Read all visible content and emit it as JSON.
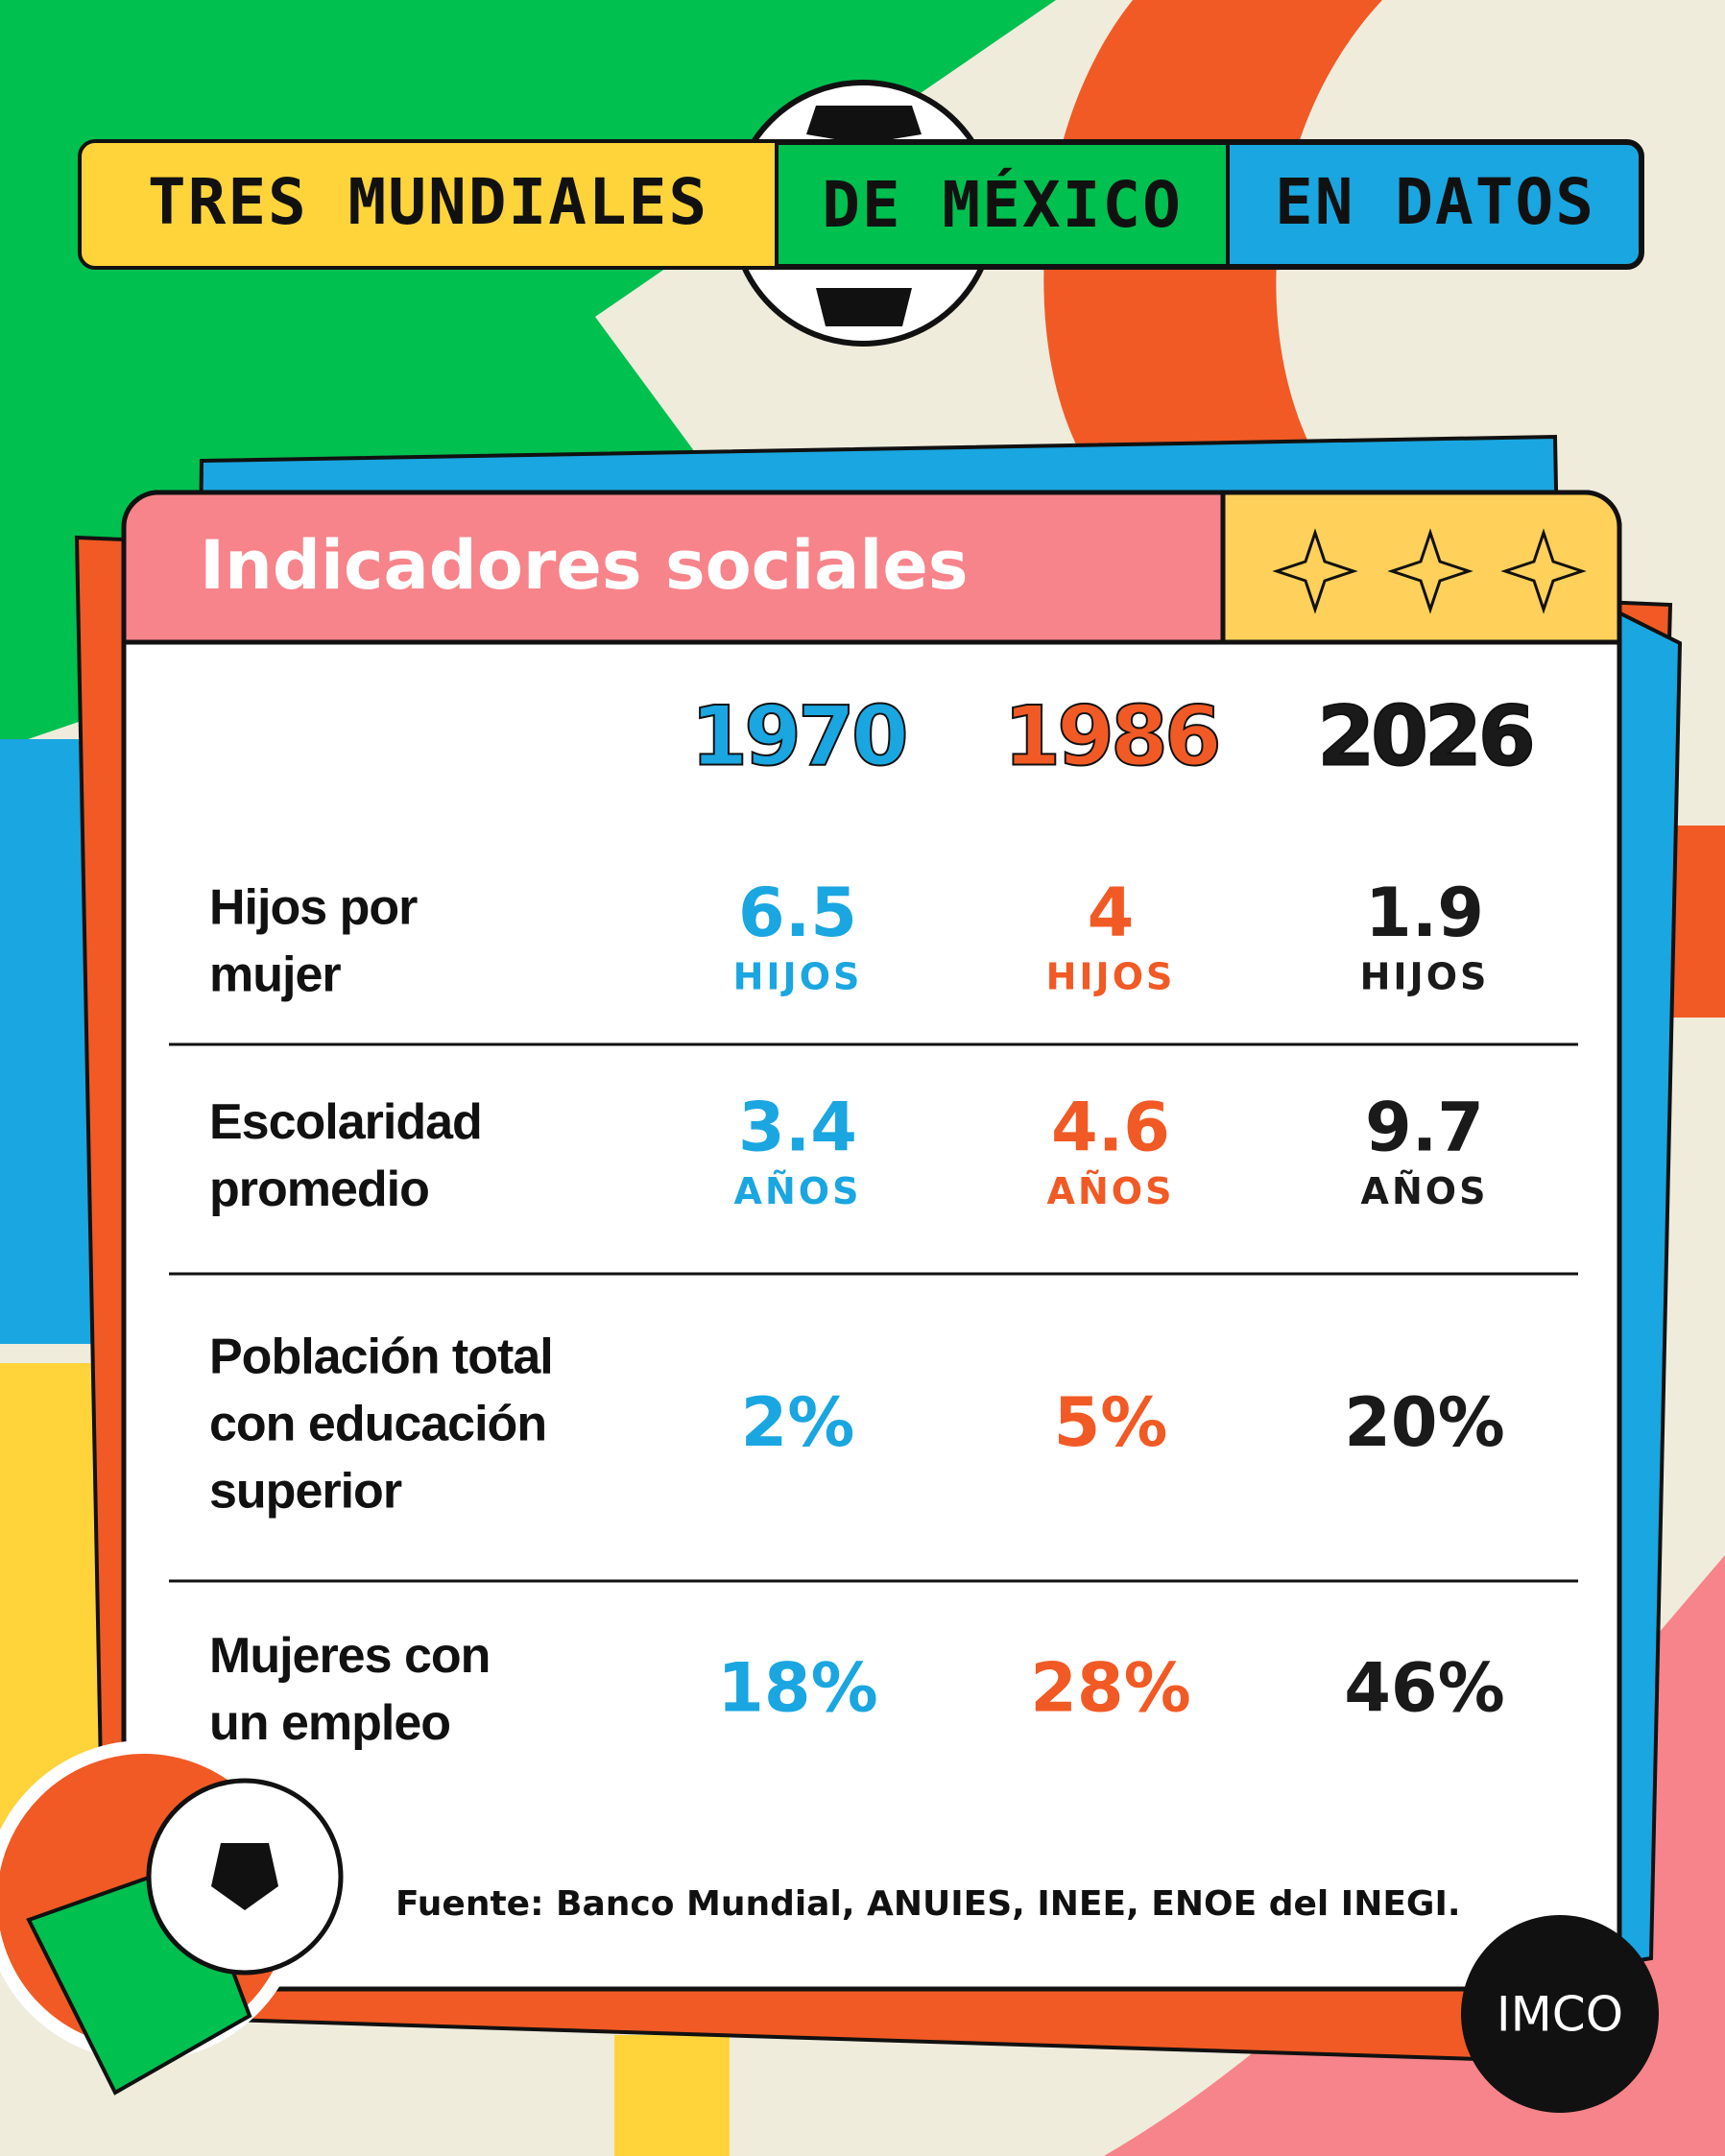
{
  "header": {
    "title_parts": [
      "TRES MUNDIALES",
      "DE MÉXICO",
      "EN DATOS"
    ]
  },
  "panel": {
    "title": "Indicadores sociales"
  },
  "table": {
    "columns": [
      {
        "year": "1970",
        "color": "#1aa6e0"
      },
      {
        "year": "1986",
        "color": "#f15a24"
      },
      {
        "year": "2026",
        "color": "#1a1a1a"
      }
    ],
    "rows": [
      {
        "label": [
          "Hijos por",
          "mujer"
        ],
        "values": [
          "6.5",
          "4",
          "1.9"
        ],
        "unit": "HIJOS"
      },
      {
        "label": [
          "Escolaridad",
          "promedio"
        ],
        "values": [
          "3.4",
          "4.6",
          "9.7"
        ],
        "unit": "AÑOS"
      },
      {
        "label": [
          "Población total",
          "con educación",
          "superior"
        ],
        "values": [
          "2%",
          "5%",
          "20%"
        ]
      },
      {
        "label": [
          "Mujeres con",
          "un empleo"
        ],
        "values": [
          "18%",
          "28%",
          "46%"
        ]
      }
    ]
  },
  "source": "Fuente: Banco Mundial, ANUIES, INEE, ENOE del INEGI.",
  "logo": "IMCO"
}
